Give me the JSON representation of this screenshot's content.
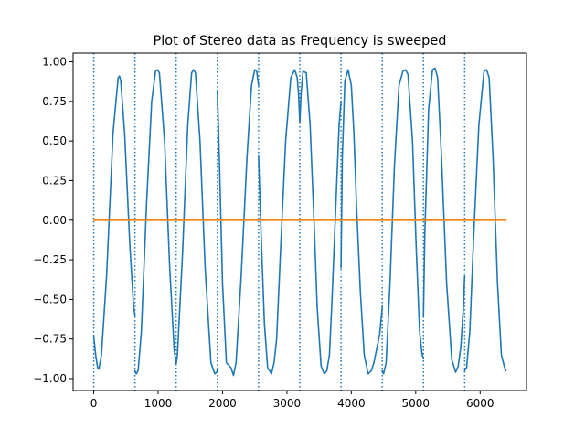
{
  "chart_data": {
    "type": "line",
    "title": "Plot of Stereo data as Frequency is sweeped",
    "xlabel": "",
    "ylabel": "",
    "xlim": [
      -320,
      6720
    ],
    "ylim": [
      -1.075,
      1.055
    ],
    "xticks": [
      0,
      1000,
      2000,
      3000,
      4000,
      5000,
      6000
    ],
    "yticks": [
      -1.0,
      -0.75,
      -0.5,
      -0.25,
      0.0,
      0.25,
      0.5,
      0.75,
      1.0
    ],
    "xtick_labels": [
      "0",
      "1000",
      "2000",
      "3000",
      "4000",
      "5000",
      "6000"
    ],
    "ytick_labels": [
      "−1.00",
      "−0.75",
      "−0.50",
      "−0.25",
      "0.00",
      "0.25",
      "0.50",
      "0.75",
      "1.00"
    ],
    "grid": false,
    "vlines": {
      "x": [
        0,
        640,
        1280,
        1920,
        2560,
        3200,
        3840,
        4480,
        5120,
        5760
      ],
      "style": "dotted",
      "color": "#1f77b4"
    },
    "series": [
      {
        "color": "#1f77b4",
        "segments": [
          {
            "x": [
              0,
              30,
              60,
              80,
              120,
              200,
              300,
              380,
              400,
              420,
              480,
              560,
              620,
              640
            ],
            "y": [
              -0.73,
              -0.85,
              -0.93,
              -0.94,
              -0.85,
              -0.35,
              0.55,
              0.9,
              0.91,
              0.88,
              0.55,
              -0.15,
              -0.55,
              -0.6
            ]
          },
          {
            "x": [
              640,
              660,
              690,
              740,
              820,
              900,
              960,
              990,
              1020,
              1100,
              1180,
              1250,
              1280
            ],
            "y": [
              -0.95,
              -0.97,
              -0.95,
              -0.7,
              0.1,
              0.75,
              0.94,
              0.95,
              0.93,
              0.5,
              -0.3,
              -0.82,
              -0.91
            ]
          },
          {
            "x": [
              1280,
              1300,
              1380,
              1460,
              1520,
              1550,
              1580,
              1650,
              1730,
              1820,
              1880,
              1910,
              1920
            ],
            "y": [
              -0.91,
              -0.85,
              -0.2,
              0.6,
              0.93,
              0.95,
              0.93,
              0.5,
              -0.3,
              -0.9,
              -0.97,
              -0.96,
              -0.94
            ]
          },
          {
            "x": [
              1920,
              1950,
              2000,
              2060,
              2130,
              2170,
              2210,
              2290,
              2380,
              2450,
              2500,
              2530,
              2560
            ],
            "y": [
              0.81,
              0.4,
              -0.4,
              -0.9,
              -0.93,
              -0.98,
              -0.9,
              -0.35,
              0.4,
              0.85,
              0.95,
              0.94,
              0.85
            ]
          },
          {
            "x": [
              2560,
              2600,
              2650,
              2700,
              2760,
              2800,
              2840,
              2900,
              2980,
              3060,
              3120,
              3160,
              3180,
              3200
            ],
            "y": [
              0.4,
              -0.1,
              -0.65,
              -0.93,
              -0.97,
              -0.9,
              -0.75,
              -0.2,
              0.5,
              0.9,
              0.95,
              0.9,
              0.8,
              0.62
            ]
          },
          {
            "x": [
              3200,
              3220,
              3250,
              3300,
              3360,
              3420,
              3470,
              3530,
              3580,
              3620,
              3660,
              3700,
              3760,
              3810,
              3840
            ],
            "y": [
              0.62,
              0.8,
              0.94,
              0.93,
              0.6,
              0.0,
              -0.55,
              -0.92,
              -0.97,
              -0.95,
              -0.85,
              -0.5,
              0.1,
              0.6,
              0.75
            ]
          },
          {
            "x": [
              3840,
              3860,
              3900,
              3950,
              4000,
              4040,
              4080,
              4140,
              4200,
              4260,
              4310,
              4350,
              4400,
              4440,
              4480
            ],
            "y": [
              -0.3,
              0.4,
              0.88,
              0.95,
              0.85,
              0.55,
              0.1,
              -0.45,
              -0.85,
              -0.97,
              -0.95,
              -0.9,
              -0.8,
              -0.72,
              -0.55
            ]
          },
          {
            "x": [
              4480,
              4500,
              4540,
              4600,
              4670,
              4740,
              4800,
              4840,
              4880,
              4950,
              5010,
              5060,
              5100,
              5120
            ],
            "y": [
              -0.95,
              -0.97,
              -0.9,
              -0.4,
              0.35,
              0.85,
              0.94,
              0.95,
              0.92,
              0.5,
              -0.2,
              -0.7,
              -0.85,
              -0.87
            ]
          },
          {
            "x": [
              5120,
              5140,
              5200,
              5260,
              5300,
              5340,
              5400,
              5480,
              5560,
              5620,
              5660,
              5700,
              5740,
              5760
            ],
            "y": [
              -0.6,
              -0.1,
              0.7,
              0.95,
              0.96,
              0.9,
              0.4,
              -0.4,
              -0.88,
              -0.96,
              -0.92,
              -0.8,
              -0.55,
              -0.35
            ]
          },
          {
            "x": [
              5760,
              5790,
              5840,
              5900,
              5980,
              6060,
              6100,
              6140,
              6200,
              6270,
              6330,
              6380,
              6400
            ],
            "y": [
              -0.95,
              -0.93,
              -0.7,
              -0.1,
              0.6,
              0.94,
              0.95,
              0.9,
              0.4,
              -0.4,
              -0.85,
              -0.93,
              -0.95
            ]
          }
        ]
      },
      {
        "color": "#ff7f0e",
        "segments": [
          {
            "x": [
              0,
              400,
              800,
              1200,
              1600,
              2000,
              2400,
              2800,
              3200,
              3600,
              4000,
              4400,
              4800,
              5200,
              5600,
              6000,
              6400
            ],
            "y": [
              0.0,
              0.0,
              0.0,
              0.0,
              0.0,
              0.0,
              0.0,
              0.0,
              0.0,
              0.0,
              0.0,
              0.0,
              0.0,
              0.0,
              0.0,
              0.0,
              0.0
            ]
          }
        ]
      }
    ]
  }
}
